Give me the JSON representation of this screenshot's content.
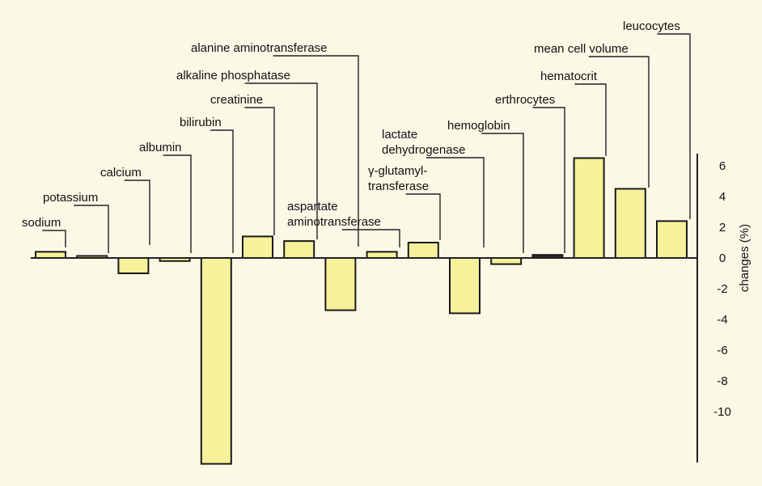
{
  "chart_data": {
    "type": "bar",
    "title": "",
    "xlabel": "",
    "ylabel": "changes (%)",
    "ylim": [
      -13.5,
      6.8
    ],
    "yticks": [
      6,
      4,
      2,
      0,
      -2,
      -4,
      -6,
      -8,
      -10
    ],
    "ytick_labels": [
      "6",
      "4",
      "2",
      "0",
      "-2",
      "-4",
      "-6",
      "-8",
      "-10"
    ],
    "grid": false,
    "legend": "none",
    "colors": {
      "bar_fill": "#f6f19a",
      "bar_stroke": "#1a1a1a",
      "dark_bar_fill": "#2a2a2a",
      "background": "#fbf8e6"
    },
    "categories": [
      "sodium",
      "potassium",
      "calcium",
      "albumin",
      "bilirubin",
      "creatinine",
      "alkaline phosphatase",
      "alanine aminotransferase",
      "aspartate aminotransferase",
      "γ-glutamyl-transferase",
      "lactate dehydrogenase",
      "hemoglobin",
      "erthrocytes",
      "hematocrit",
      "mean cell volume",
      "leucocytes"
    ],
    "label_lines": [
      [
        "sodium"
      ],
      [
        "potassium"
      ],
      [
        "calcium"
      ],
      [
        "albumin"
      ],
      [
        "bilirubin"
      ],
      [
        "creatinine"
      ],
      [
        "alkaline phosphatase"
      ],
      [
        "alanine aminotransferase"
      ],
      [
        "aspartate",
        "aminotransferase"
      ],
      [
        "γ-glutamyl-",
        "transferase"
      ],
      [
        "lactate",
        "dehydrogenase"
      ],
      [
        "hemoglobin"
      ],
      [
        "erthrocytes"
      ],
      [
        "hematocrit"
      ],
      [
        "mean cell volume"
      ],
      [
        "leucocytes"
      ]
    ],
    "bar_order": [
      "sodium",
      "potassium",
      "calcium",
      "albumin",
      "bilirubin",
      "creatinine",
      "alkaline phosphatase",
      "aspartate aminotransferase",
      "alanine aminotransferase",
      "γ-glutamyl-transferase",
      "lactate dehydrogenase",
      "hemoglobin",
      "erthrocytes",
      "hematocrit",
      "mean cell volume",
      "leucocytes"
    ],
    "values": [
      0.4,
      0.0,
      -1.0,
      -0.2,
      -13.4,
      1.4,
      1.1,
      -3.4,
      0.4,
      1.0,
      -3.6,
      -0.4,
      0.2,
      6.5,
      4.5,
      2.4
    ]
  }
}
